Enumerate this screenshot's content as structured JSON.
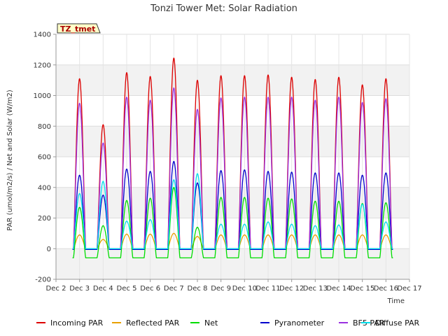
{
  "chart_data": {
    "type": "line",
    "title": "Tonzi Tower Met: Solar Radiation",
    "xlabel": "Time",
    "ylabel": "PAR (umol/m2/s) / Net and Solar (W/m2)",
    "badge": "TZ_tmet",
    "xlim": [
      2,
      17
    ],
    "ylim": [
      -200,
      1400
    ],
    "x_ticks": [
      {
        "value": 2,
        "label": "Dec 2"
      },
      {
        "value": 3,
        "label": "Dec 3"
      },
      {
        "value": 4,
        "label": "Dec 4"
      },
      {
        "value": 5,
        "label": "Dec 5"
      },
      {
        "value": 6,
        "label": "Dec 6"
      },
      {
        "value": 7,
        "label": "Dec 7"
      },
      {
        "value": 8,
        "label": "Dec 8"
      },
      {
        "value": 9,
        "label": "Dec 9"
      },
      {
        "value": 10,
        "label": "Dec 10"
      },
      {
        "value": 11,
        "label": "Dec 11"
      },
      {
        "value": 12,
        "label": "Dec 12"
      },
      {
        "value": 13,
        "label": "Dec 13"
      },
      {
        "value": 14,
        "label": "Dec 14"
      },
      {
        "value": 15,
        "label": "Dec 15"
      },
      {
        "value": 16,
        "label": "Dec 16"
      },
      {
        "value": 17,
        "label": "Dec 17"
      }
    ],
    "y_ticks": [
      {
        "value": -200,
        "label": "-200"
      },
      {
        "value": 0,
        "label": "0"
      },
      {
        "value": 200,
        "label": "200"
      },
      {
        "value": 400,
        "label": "400"
      },
      {
        "value": 600,
        "label": "600"
      },
      {
        "value": 800,
        "label": "800"
      },
      {
        "value": 1000,
        "label": "1000"
      },
      {
        "value": 1200,
        "label": "1200"
      },
      {
        "value": 1400,
        "label": "1400"
      }
    ],
    "day_centers": [
      3.0,
      4.0,
      5.0,
      6.0,
      7.0,
      8.0,
      9.0,
      10.0,
      11.0,
      12.0,
      13.0,
      14.0,
      15.0,
      16.0
    ],
    "series": [
      {
        "name": "Incoming PAR",
        "color": "#dd0000",
        "night": 0,
        "peaks": [
          1110,
          810,
          1150,
          1125,
          1245,
          1100,
          1130,
          1130,
          1135,
          1120,
          1105,
          1120,
          1070,
          1110
        ]
      },
      {
        "name": "Reflected PAR",
        "color": "#e8a000",
        "night": 0,
        "peaks": [
          90,
          60,
          95,
          95,
          100,
          80,
          90,
          90,
          90,
          90,
          90,
          90,
          90,
          90
        ]
      },
      {
        "name": "Net",
        "color": "#00dd00",
        "night": -60,
        "peaks": [
          270,
          150,
          315,
          330,
          400,
          140,
          335,
          335,
          330,
          325,
          310,
          310,
          295,
          300
        ]
      },
      {
        "name": "Pyranometer",
        "color": "#0000cc",
        "night": -5,
        "peaks": [
          480,
          350,
          520,
          505,
          570,
          430,
          510,
          515,
          505,
          500,
          495,
          495,
          480,
          495
        ]
      },
      {
        "name": "BF5 PAR",
        "color": "#9a30e0",
        "night": 0,
        "peaks": [
          950,
          690,
          990,
          970,
          1050,
          910,
          985,
          990,
          990,
          990,
          970,
          990,
          955,
          980
        ]
      },
      {
        "name": "Diffuse PAR",
        "color": "#00e0ee",
        "night": 0,
        "peaks": [
          360,
          440,
          180,
          190,
          450,
          490,
          160,
          160,
          175,
          160,
          150,
          155,
          290,
          175
        ]
      }
    ]
  }
}
